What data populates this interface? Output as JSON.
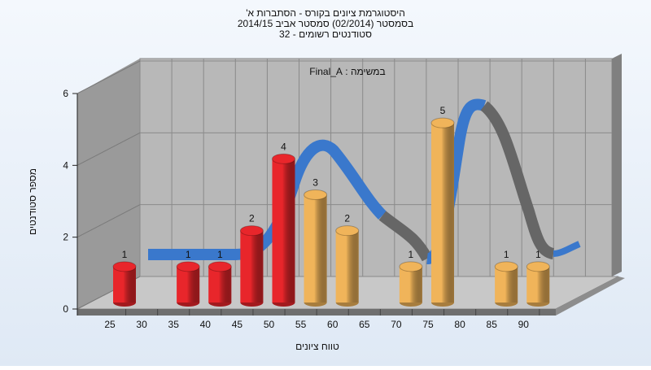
{
  "chart_data": {
    "type": "bar3d",
    "title": [
      "היסטוגרמת ציונים בקורס - הסתברות א'",
      "בסמסטר  (02/2014)  סמסטר אביב 2014/15",
      "סטודנטים רשומים - 32"
    ],
    "subtitle": "במשימה : Final_A",
    "x_label": "טווח ציונים",
    "y_label": "מספר סטודנטים",
    "categories": [
      "25",
      "30",
      "35",
      "40",
      "45",
      "50",
      "55",
      "60",
      "65",
      "70",
      "75",
      "80",
      "85",
      "90"
    ],
    "values": [
      1,
      null,
      1,
      1,
      2,
      4,
      3,
      2,
      null,
      1,
      5,
      null,
      1,
      1
    ],
    "colors": [
      "#e8262b",
      "#e8262b",
      "#e8262b",
      "#e8262b",
      "#e8262b",
      "#e8262b",
      "#f0b45a",
      "#f0b45a",
      "#f0b45a",
      "#f0b45a",
      "#f0b45a",
      "#f0b45a",
      "#f0b45a",
      "#f0b45a"
    ],
    "ylim": [
      0,
      6
    ],
    "yticks": [
      0,
      2,
      4,
      6
    ],
    "grid": true
  }
}
